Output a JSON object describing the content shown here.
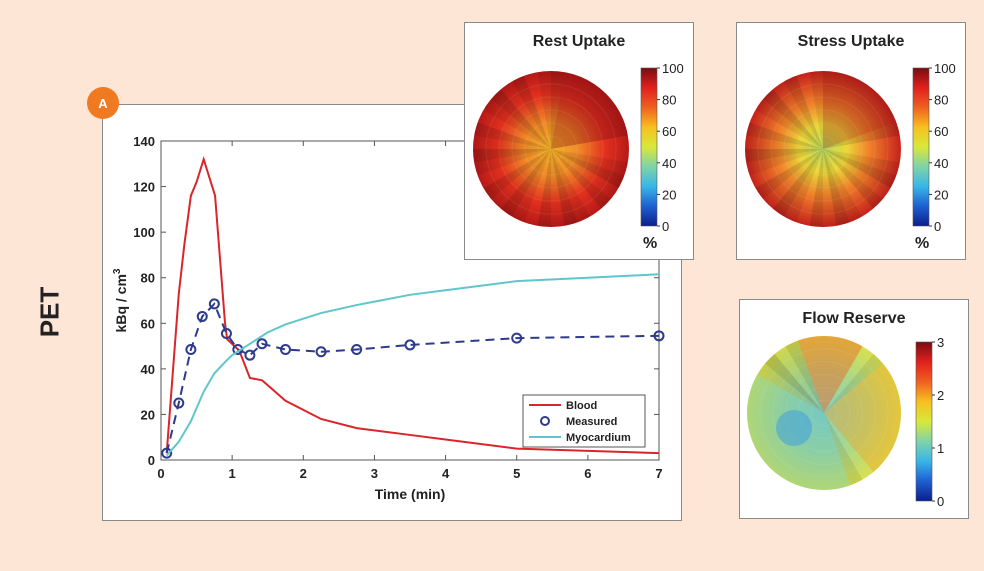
{
  "label": "PET",
  "badge": "A",
  "chart_data": [
    {
      "type": "line",
      "xlabel": "Time (min)",
      "ylabel": "kBq / cm",
      "ylabel_sup": "3",
      "xlim": [
        0,
        7
      ],
      "ylim": [
        0,
        140
      ],
      "xticks": [
        0,
        1,
        2,
        3,
        4,
        5,
        6,
        7
      ],
      "yticks": [
        0,
        20,
        40,
        60,
        80,
        100,
        120,
        140
      ],
      "legend_position": "bottom-right",
      "series": [
        {
          "name": "Blood",
          "style": "solid",
          "color": "#d8262b",
          "x": [
            0.08,
            0.17,
            0.25,
            0.33,
            0.42,
            0.5,
            0.6,
            0.76,
            0.9,
            0.93,
            1.1,
            1.25,
            1.42,
            1.75,
            2,
            2.25,
            2.75,
            3.5,
            4,
            5,
            7
          ],
          "y": [
            3,
            40,
            73,
            95,
            116,
            122,
            132,
            116,
            60,
            53,
            48,
            36,
            35,
            26,
            22,
            18,
            14,
            11,
            9,
            5,
            3
          ]
        },
        {
          "name": "Measured",
          "style": "dashed-markers",
          "color": "#2e3a8c",
          "x": [
            0.08,
            0.25,
            0.42,
            0.58,
            0.75,
            0.92,
            1.08,
            1.25,
            1.42,
            1.75,
            2.25,
            2.75,
            3.5,
            5,
            7
          ],
          "y": [
            3,
            25,
            48.5,
            63,
            68.5,
            55.5,
            48.5,
            46,
            51,
            48.5,
            47.5,
            48.5,
            50.5,
            53.5,
            54.5
          ]
        },
        {
          "name": "Myocardium",
          "style": "solid",
          "color": "#5fc6cb",
          "x": [
            0.08,
            0.25,
            0.42,
            0.6,
            0.75,
            0.9,
            1,
            1.25,
            1.5,
            1.75,
            2,
            2.25,
            2.75,
            3.5,
            4,
            5,
            6,
            7
          ],
          "y": [
            2,
            8,
            17,
            30,
            38,
            43,
            46,
            51,
            56,
            59.5,
            62,
            64.5,
            68,
            72.5,
            74.5,
            78.5,
            80,
            81.5
          ]
        }
      ]
    },
    {
      "type": "heatmap",
      "title": "Rest Uptake",
      "colorbar_ticks": [
        "100",
        "80",
        "60",
        "40",
        "20",
        "0"
      ],
      "colorbar_label": "%",
      "range": [
        0,
        100
      ]
    },
    {
      "type": "heatmap",
      "title": "Stress Uptake",
      "colorbar_ticks": [
        "100",
        "80",
        "60",
        "40",
        "20",
        "0"
      ],
      "colorbar_label": "%",
      "range": [
        0,
        100
      ]
    },
    {
      "type": "heatmap",
      "title": "Flow Reserve",
      "colorbar_ticks": [
        "3",
        "2",
        "1",
        "0"
      ],
      "colorbar_label": "",
      "range": [
        0,
        3
      ]
    }
  ]
}
